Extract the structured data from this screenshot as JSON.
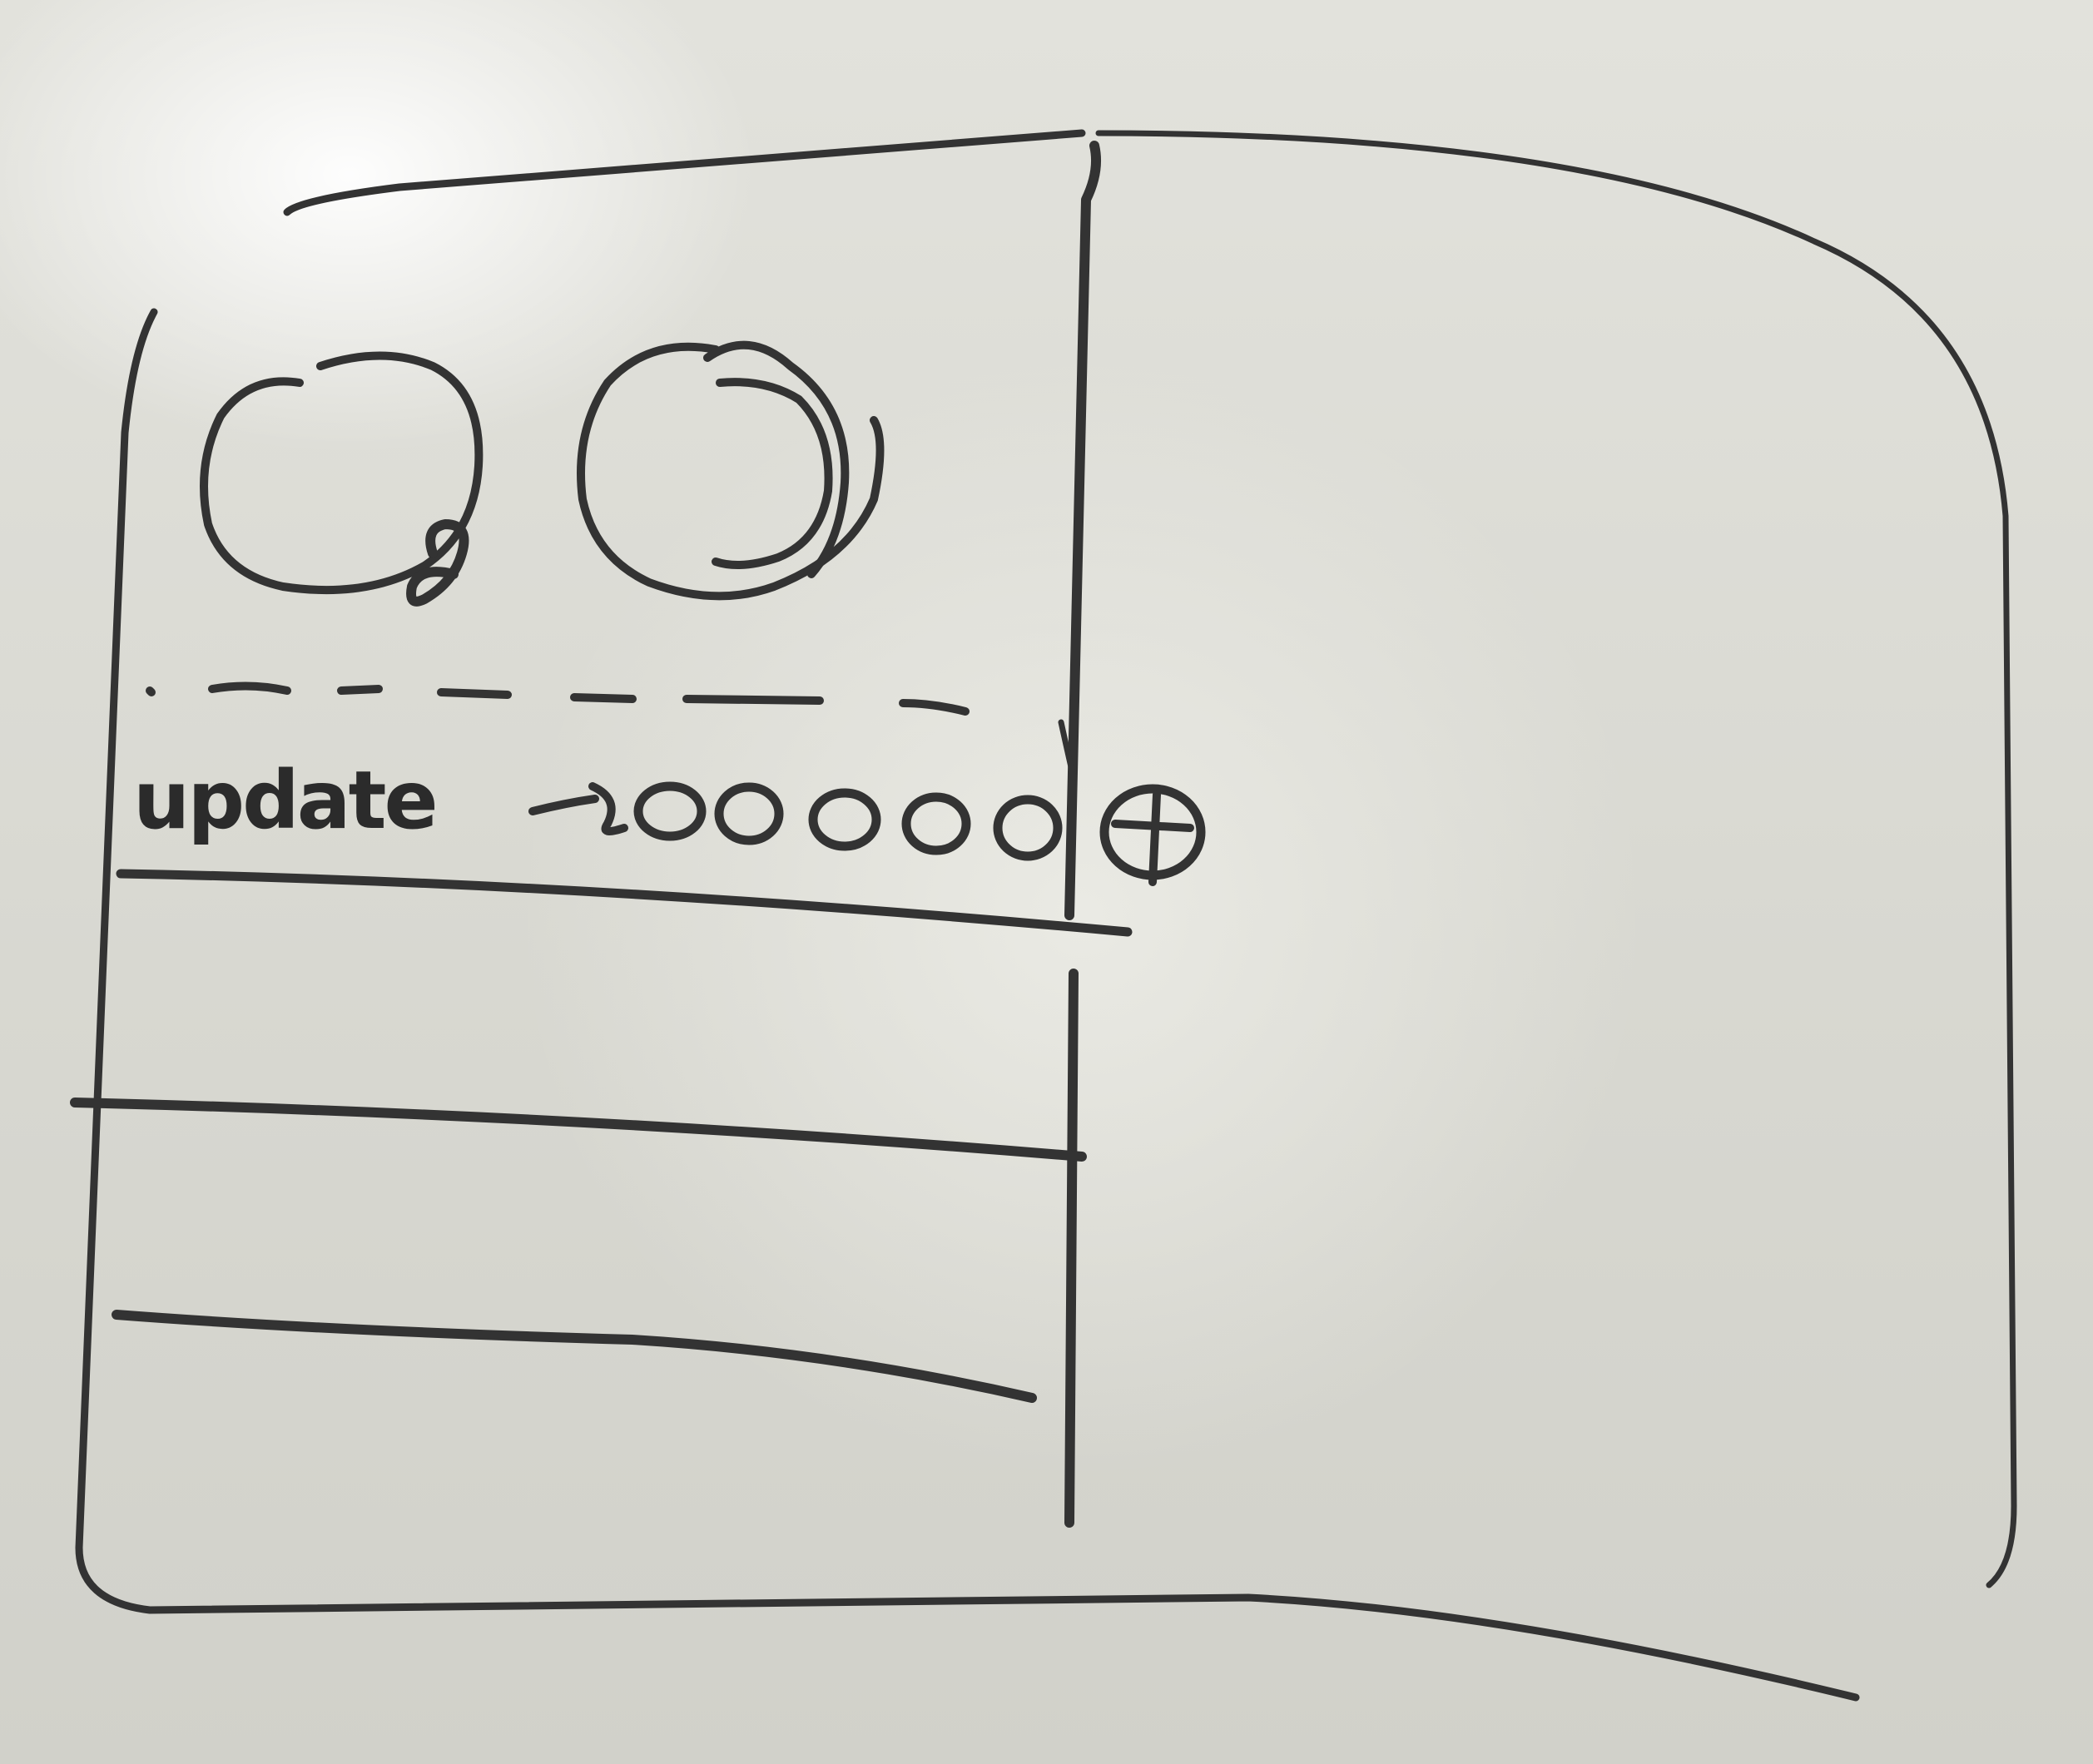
{
  "sketch": {
    "update_label": "update",
    "ink_color": "#333333",
    "board_color": "#deded7",
    "elements": {
      "window_frame": "window-frame",
      "left_panel": "left-panel",
      "right_panel": "right-panel",
      "profile_circle": "avatar-placeholder",
      "refresh_circle": "refresh-icon",
      "add_button": "add-circle-icon"
    },
    "update_dots_count": 6
  }
}
